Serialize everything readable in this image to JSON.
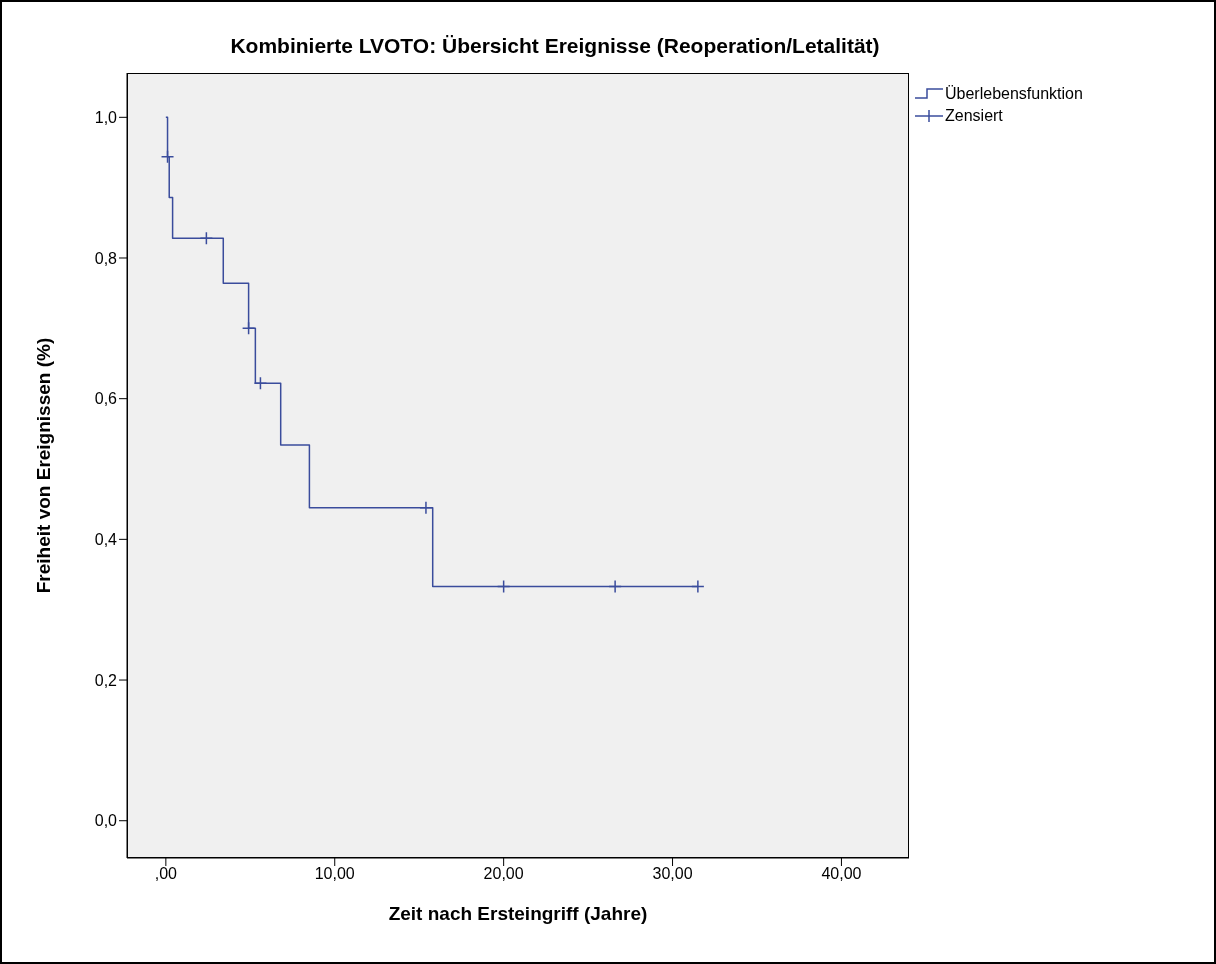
{
  "chart_data": {
    "type": "step",
    "title": "Kombinierte LVOTO: Übersicht Ereignisse (Reoperation/Letalität)",
    "xlabel": "Zeit nach Ersteingriff (Jahre)",
    "ylabel": "Freiheit von Ereignissen (%)",
    "xlim": [
      -2.3,
      44
    ],
    "xticks": [
      {
        "value": 0,
        "label": ",00"
      },
      {
        "value": 10,
        "label": "10,00"
      },
      {
        "value": 20,
        "label": "20,00"
      },
      {
        "value": 30,
        "label": "30,00"
      },
      {
        "value": 40,
        "label": "40,00"
      }
    ],
    "ylim": [
      -0.053,
      1.063
    ],
    "yticks": [
      {
        "value": 0,
        "label": "0,0"
      },
      {
        "value": 0.2,
        "label": "0,2"
      },
      {
        "value": 0.4,
        "label": "0,4"
      },
      {
        "value": 0.6,
        "label": "0,6"
      },
      {
        "value": 0.8,
        "label": "0,8"
      },
      {
        "value": 1,
        "label": "1,0"
      }
    ],
    "legend": "top right",
    "grid": false,
    "series": [
      {
        "name": "Überlebensfunktion",
        "color": "#3a4c9c",
        "line_style": "solid",
        "x": [
          0,
          0.1,
          0.2,
          0.4,
          3.4,
          4.9,
          5.3,
          6.8,
          8.5,
          15.8,
          31.5
        ],
        "values": [
          1.0,
          0.944,
          0.886,
          0.828,
          0.764,
          0.7,
          0.622,
          0.534,
          0.445,
          0.333,
          0.333
        ]
      },
      {
        "name": "Zensiert",
        "type": "scatter",
        "marker": "cross",
        "color": "#3a4c9c",
        "x": [
          0.1,
          2.4,
          4.9,
          5.6,
          15.4,
          20.0,
          26.6,
          31.5
        ],
        "values": [
          0.944,
          0.828,
          0.7,
          0.622,
          0.445,
          0.333,
          0.333,
          0.333
        ]
      }
    ]
  }
}
